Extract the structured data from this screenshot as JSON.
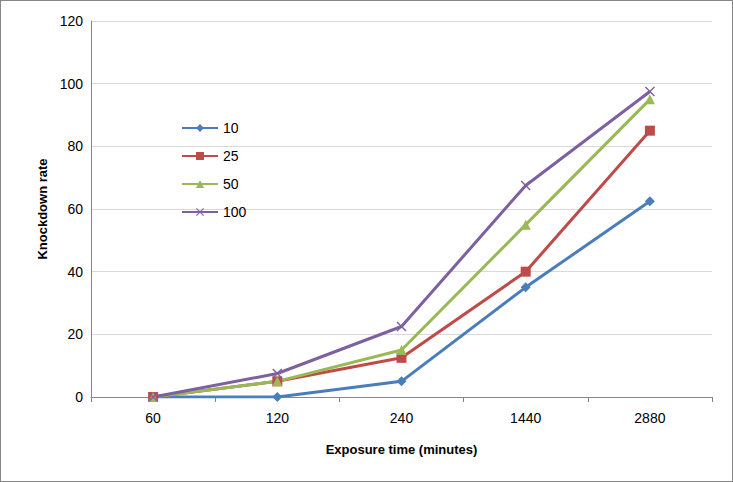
{
  "chart_data": {
    "type": "line",
    "x_label": "Exposure time (minutes)",
    "y_label": "Knockdown rate",
    "categories": [
      "60",
      "120",
      "240",
      "1440",
      "2880"
    ],
    "series": [
      {
        "name": "10",
        "color": "#4a7ebb",
        "marker": "diamond",
        "values": [
          0,
          0,
          5,
          35,
          62.5
        ]
      },
      {
        "name": "25",
        "color": "#be4b48",
        "marker": "square",
        "values": [
          0,
          5,
          12.5,
          40,
          85
        ]
      },
      {
        "name": "50",
        "color": "#98b954",
        "marker": "triangle",
        "values": [
          0,
          5,
          15,
          55,
          95
        ]
      },
      {
        "name": "100",
        "color": "#7d60a0",
        "marker": "x",
        "values": [
          0,
          7.5,
          22.5,
          67.5,
          97.5
        ]
      }
    ],
    "ylim": [
      0,
      120
    ],
    "yticks": [
      0,
      20,
      40,
      60,
      80,
      100,
      120
    ],
    "grid": true,
    "legend": "upper left"
  }
}
